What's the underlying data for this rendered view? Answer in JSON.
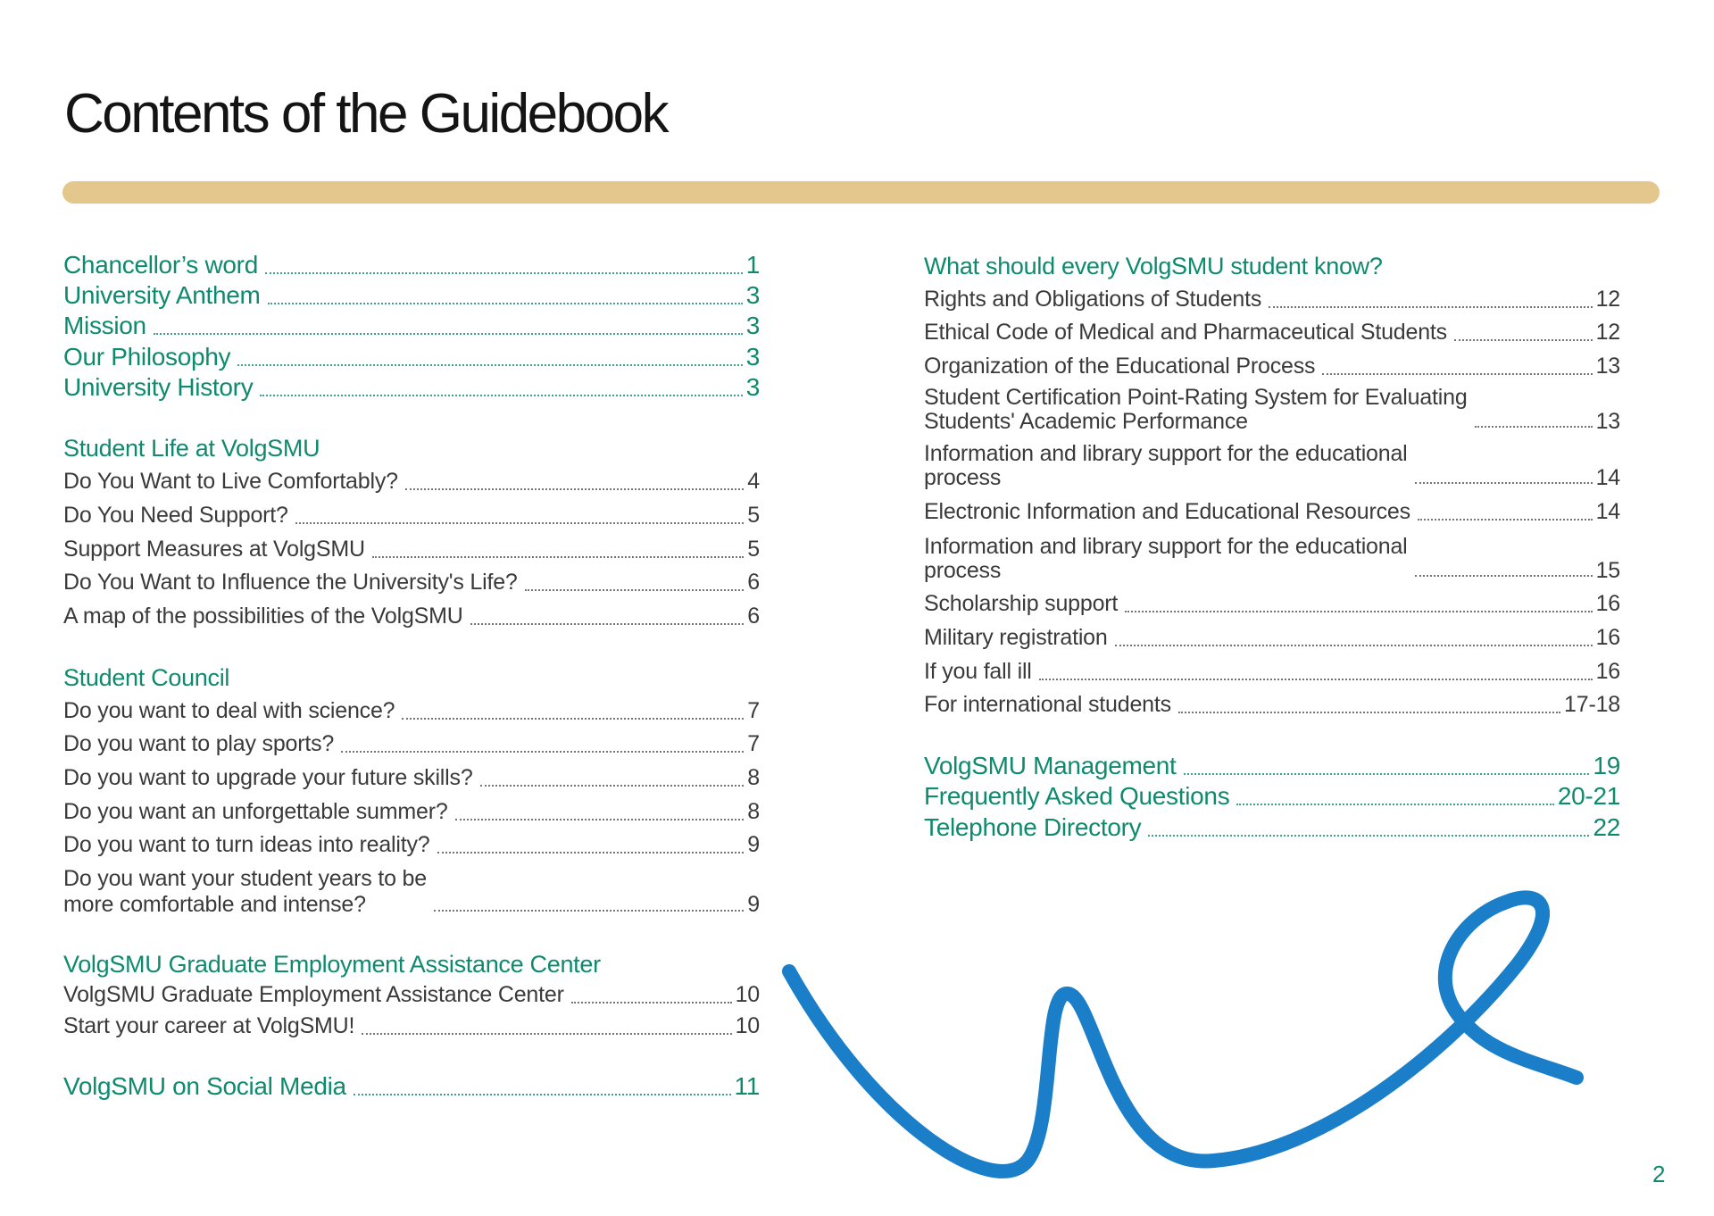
{
  "page": {
    "title": "Contents of the Guidebook",
    "page_number": "2"
  },
  "colors": {
    "accent_teal": "#0e8a6e",
    "text_gray": "#3a3a3a",
    "gold_bar": "#e3c78c",
    "curve_blue": "#1a7fc8"
  },
  "left_column": [
    {
      "type": "main",
      "label": [
        "Chancellor’s word"
      ],
      "page": "1"
    },
    {
      "type": "main",
      "label": [
        "University Anthem"
      ],
      "page": "3"
    },
    {
      "type": "main",
      "label": [
        "Mission"
      ],
      "page": "3"
    },
    {
      "type": "main",
      "label": [
        "Our Philosophy"
      ],
      "page": "3"
    },
    {
      "type": "main",
      "label": [
        "University History"
      ],
      "page": "3"
    },
    {
      "type": "head",
      "label": [
        "Student Life at VolgSMU"
      ]
    },
    {
      "type": "sub",
      "label": [
        "Do You Want to Live Comfortably?"
      ],
      "page": "4"
    },
    {
      "type": "sub",
      "label": [
        "Do You Need Support?"
      ],
      "page": "5"
    },
    {
      "type": "sub",
      "label": [
        "Support Measures at VolgSMU"
      ],
      "page": "5"
    },
    {
      "type": "sub",
      "label": [
        "Do You Want to Influence the University's Life?"
      ],
      "page": "6"
    },
    {
      "type": "sub",
      "label": [
        "A map of the possibilities of the VolgSMU"
      ],
      "page": "6"
    },
    {
      "type": "head",
      "label": [
        "Student Council"
      ]
    },
    {
      "type": "sub",
      "label": [
        "Do you want to deal with science?"
      ],
      "page": "7"
    },
    {
      "type": "sub",
      "label": [
        "Do you want to play sports?"
      ],
      "page": "7"
    },
    {
      "type": "sub",
      "label": [
        "Do you want to upgrade your future skills?"
      ],
      "page": "8"
    },
    {
      "type": "sub",
      "label": [
        "Do you want an unforgettable summer?"
      ],
      "page": "8"
    },
    {
      "type": "sub",
      "label": [
        "Do you want to turn ideas into reality?"
      ],
      "page": "9"
    },
    {
      "type": "sub",
      "label": [
        "Do you want your student years to be",
        "more comfortable and intense?"
      ],
      "page": "9"
    },
    {
      "type": "head",
      "label": [
        "VolgSMU Graduate Employment Assistance Center"
      ]
    },
    {
      "type": "sub",
      "label": [
        "VolgSMU Graduate Employment Assistance Center"
      ],
      "page": "10"
    },
    {
      "type": "sub",
      "label": [
        "Start your career at VolgSMU!"
      ],
      "page": "10"
    },
    {
      "type": "main",
      "label": [
        "VolgSMU on Social Media"
      ],
      "page": "11"
    }
  ],
  "right_column": [
    {
      "type": "head",
      "label": [
        "What should every VolgSMU student know?"
      ]
    },
    {
      "type": "sub",
      "label": [
        "Rights and Obligations of Students"
      ],
      "page": "12"
    },
    {
      "type": "sub",
      "label": [
        "Ethical Code of Medical and Pharmaceutical Students"
      ],
      "page": "12"
    },
    {
      "type": "sub",
      "label": [
        "Organization of the Educational Process"
      ],
      "page": "13"
    },
    {
      "type": "sub",
      "label": [
        "Student Certification Point-Rating System for Evaluating",
        "Students' Academic Performance"
      ],
      "page": "13"
    },
    {
      "type": "sub",
      "label": [
        "Information and library support for the educational",
        "process"
      ],
      "page": "14"
    },
    {
      "type": "sub",
      "label": [
        "Electronic Information and Educational Resources"
      ],
      "page": "14"
    },
    {
      "type": "sub",
      "label": [
        "Information and library support for the educational",
        "process"
      ],
      "page": "15"
    },
    {
      "type": "sub",
      "label": [
        "Scholarship support"
      ],
      "page": "16"
    },
    {
      "type": "sub",
      "label": [
        "Military registration"
      ],
      "page": "16"
    },
    {
      "type": "sub",
      "label": [
        "If you fall ill"
      ],
      "page": "16"
    },
    {
      "type": "sub",
      "label": [
        "For international students"
      ],
      "page": "17-18"
    },
    {
      "type": "main",
      "label": [
        "VolgSMU Management"
      ],
      "page": "19"
    },
    {
      "type": "main",
      "label": [
        "Frequently Asked Questions"
      ],
      "page": "20-21"
    },
    {
      "type": "main",
      "label": [
        "Telephone Directory"
      ],
      "page": "22"
    }
  ]
}
